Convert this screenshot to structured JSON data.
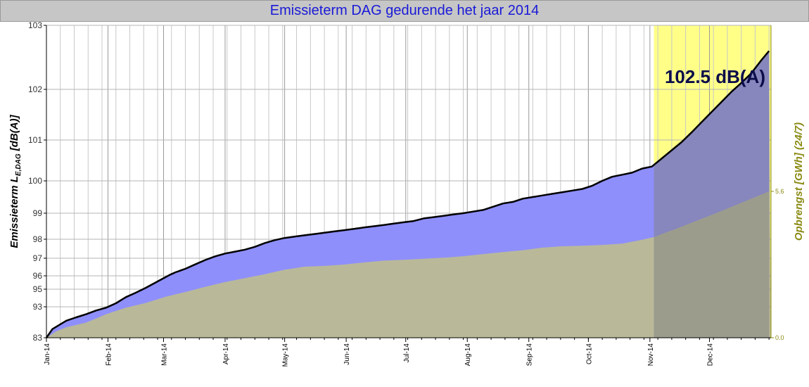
{
  "chart_data": {
    "type": "area",
    "title": "Emissieterm DAG gedurende het jaar 2014",
    "ylabel_left_main": "Emissieterm L",
    "ylabel_left_sub": "E,DAG",
    "ylabel_left_unit": " [dB(A)]",
    "ylabel_right": "Opbrengst [GWh] (24/7)",
    "annotation": "102.5 dB(A)",
    "x_tick_labels": [
      "Jan-14",
      "Feb-14",
      "Mar-14",
      "Apr-14",
      "May-14",
      "Jun-14",
      "Jul-14",
      "Aug-14",
      "Sep-14",
      "Oct-14",
      "Nov-14",
      "Dec-14"
    ],
    "left_tick_labels": [
      "83",
      "93",
      "95",
      "96",
      "97",
      "98",
      "99",
      "100",
      "101",
      "102",
      "103"
    ],
    "right_tick_labels": [
      "0.0",
      "5.6"
    ],
    "forecast_start_day": 306,
    "grid": true,
    "colors": {
      "title_text": "#1a1ad8",
      "emission_fill": "#8f8ffb",
      "yield_fill": "#b9b99a",
      "forecast_fill": "#ffff88",
      "forecast_overlay": "#808080",
      "line": "#000000",
      "right_axis": "#8a8a14",
      "title_bar": "#c6c6c6"
    },
    "series": [
      {
        "name": "Emissieterm",
        "axis": "left",
        "x_day": [
          0,
          3,
          10,
          15,
          20,
          25,
          30,
          35,
          40,
          45,
          50,
          55,
          60,
          62,
          65,
          70,
          75,
          80,
          85,
          90,
          95,
          100,
          105,
          110,
          115,
          120,
          125,
          130,
          135,
          140,
          145,
          150,
          155,
          160,
          165,
          170,
          175,
          180,
          185,
          190,
          195,
          200,
          205,
          210,
          215,
          220,
          225,
          230,
          235,
          240,
          245,
          250,
          255,
          260,
          265,
          270,
          275,
          280,
          285,
          290,
          295,
          300,
          305,
          310,
          315,
          320,
          325,
          330,
          335,
          340,
          345,
          350,
          355,
          360,
          364
        ],
        "y_db": [
          83,
          85.8,
          88.5,
          89.6,
          90.6,
          91.8,
          92.7,
          93.4,
          94.1,
          94.6,
          95.1,
          95.5,
          95.9,
          96.05,
          96.2,
          96.4,
          96.65,
          96.9,
          97.1,
          97.25,
          97.35,
          97.45,
          97.6,
          97.8,
          97.95,
          98.05,
          98.1,
          98.15,
          98.2,
          98.25,
          98.3,
          98.35,
          98.4,
          98.45,
          98.5,
          98.55,
          98.6,
          98.65,
          98.7,
          98.8,
          98.85,
          98.9,
          98.95,
          99.0,
          99.05,
          99.1,
          99.2,
          99.3,
          99.35,
          99.45,
          99.5,
          99.55,
          99.6,
          99.65,
          99.7,
          99.75,
          99.85,
          100.0,
          100.1,
          100.15,
          100.2,
          100.3,
          100.35,
          100.55,
          100.75,
          100.95,
          101.15,
          101.35,
          101.55,
          101.75,
          101.95,
          102.1,
          102.25,
          102.45,
          102.6
        ]
      },
      {
        "name": "Opbrengst",
        "axis": "right",
        "x_day": [
          0,
          5,
          10,
          20,
          30,
          40,
          50,
          60,
          70,
          80,
          90,
          100,
          110,
          120,
          130,
          140,
          150,
          160,
          170,
          180,
          190,
          200,
          210,
          220,
          230,
          240,
          250,
          260,
          270,
          280,
          290,
          300,
          306,
          320,
          340,
          364
        ],
        "y_gwh": [
          0,
          0.25,
          0.4,
          0.58,
          0.9,
          1.15,
          1.33,
          1.57,
          1.75,
          1.95,
          2.13,
          2.28,
          2.43,
          2.6,
          2.72,
          2.75,
          2.8,
          2.88,
          2.95,
          2.98,
          3.02,
          3.06,
          3.12,
          3.2,
          3.28,
          3.35,
          3.45,
          3.5,
          3.52,
          3.55,
          3.6,
          3.75,
          3.85,
          4.25,
          4.85,
          5.6
        ]
      }
    ]
  }
}
